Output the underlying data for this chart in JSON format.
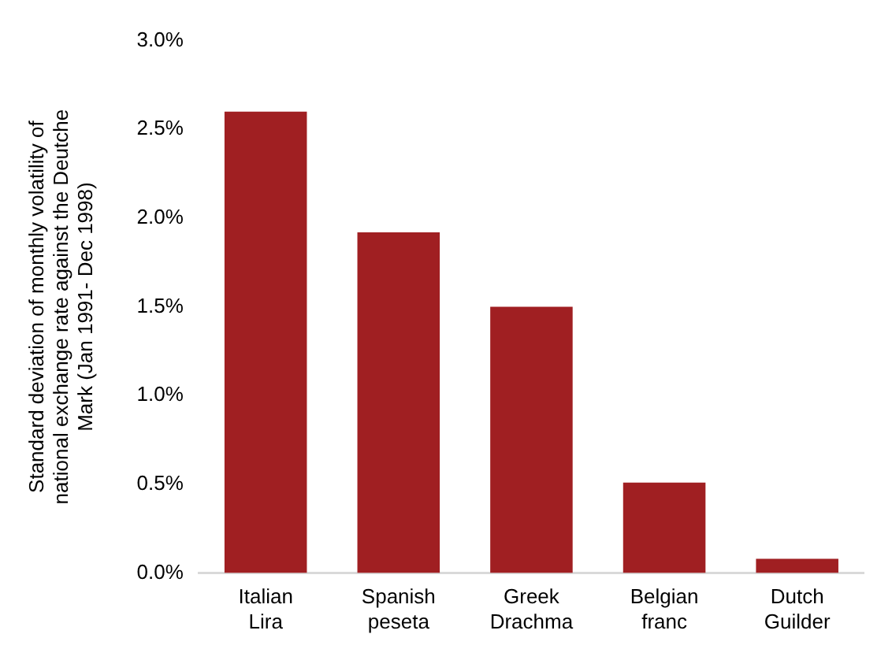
{
  "chart_data": {
    "type": "bar",
    "ylabel": "Standard deviation of monthly volatility of national exchange rate against the Deutche Mark (Jan 1991- Dec 1998)",
    "categories": [
      "Italian Lira",
      "Spanish peseta",
      "Greek Drachma",
      "Belgian franc",
      "Dutch Guilder"
    ],
    "values": [
      2.6,
      1.92,
      1.5,
      0.51,
      0.08
    ],
    "color": "#a01f22",
    "ylim": [
      0,
      3
    ],
    "yticks": [
      {
        "value": 0,
        "label": "0.0%"
      },
      {
        "value": 0.5,
        "label": "0.5%"
      },
      {
        "value": 1,
        "label": "1.0%"
      },
      {
        "value": 1.5,
        "label": "1.5%"
      },
      {
        "value": 2,
        "label": "2.0%"
      },
      {
        "value": 2.5,
        "label": "2.5%"
      },
      {
        "value": 3,
        "label": "3.0%"
      }
    ],
    "grid": false,
    "legend": false
  }
}
